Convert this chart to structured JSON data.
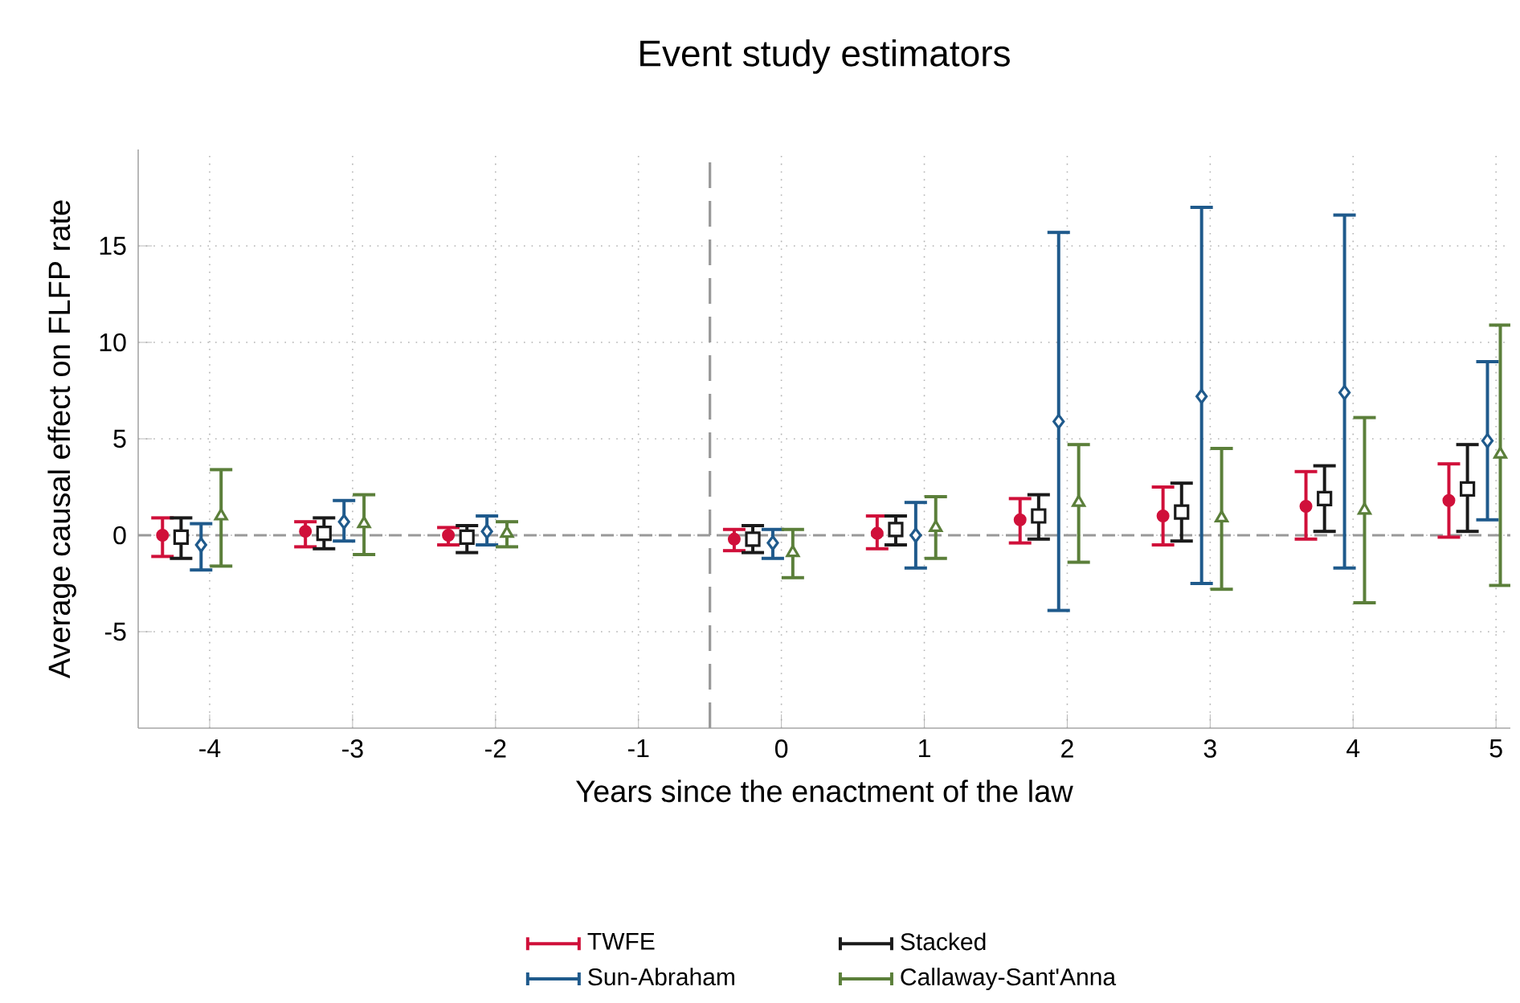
{
  "chart_data": {
    "type": "scatter",
    "title": "Event study estimators",
    "xlabel": "Years since the enactment of the law",
    "ylabel": "Average causal effect on FLFP rate",
    "xlim": [
      -4.5,
      5.1
    ],
    "xticks": [
      -4,
      -3,
      -2,
      -1,
      0,
      1,
      2,
      3,
      4,
      5
    ],
    "ylim": [
      -10,
      20
    ],
    "yticks": [
      -5,
      0,
      5,
      10,
      15
    ],
    "grid": true,
    "legend": "bottom",
    "ref_lines": [
      {
        "axis": "y",
        "value": 0,
        "color": "#999999",
        "line_style": "dashed"
      },
      {
        "axis": "x",
        "value": -0.5,
        "color": "#999999",
        "line_style": "dashed"
      }
    ],
    "series": [
      {
        "name": "TWFE",
        "color": "#d0103a",
        "marker": "circle",
        "x": [
          -4.33,
          -3.33,
          -2.33,
          -0.33,
          0.67,
          1.67,
          2.67,
          3.67,
          4.67
        ],
        "values": [
          0,
          0.2,
          0,
          -0.2,
          0.1,
          0.8,
          1.0,
          1.5,
          1.8
        ],
        "errors": [
          [
            -1.1,
            0.9
          ],
          [
            -0.6,
            0.7
          ],
          [
            -0.5,
            0.4
          ],
          [
            -0.8,
            0.3
          ],
          [
            -0.7,
            1.0
          ],
          [
            -0.4,
            1.9
          ],
          [
            -0.5,
            2.5
          ],
          [
            -0.2,
            3.3
          ],
          [
            -0.1,
            3.7
          ]
        ]
      },
      {
        "name": "Stacked",
        "color": "#1a1a1a",
        "marker": "square",
        "x": [
          -4.2,
          -3.2,
          -2.2,
          -0.2,
          0.8,
          1.8,
          2.8,
          3.8,
          4.8
        ],
        "values": [
          -0.1,
          0.1,
          -0.1,
          -0.2,
          0.3,
          1.0,
          1.2,
          1.9,
          2.4
        ],
        "errors": [
          [
            -1.2,
            0.9
          ],
          [
            -0.7,
            0.9
          ],
          [
            -0.9,
            0.5
          ],
          [
            -0.9,
            0.5
          ],
          [
            -0.5,
            1.0
          ],
          [
            -0.2,
            2.1
          ],
          [
            -0.3,
            2.7
          ],
          [
            0.2,
            3.6
          ],
          [
            0.2,
            4.7
          ]
        ]
      },
      {
        "name": "Sun-Abraham",
        "color": "#1f5a8c",
        "marker": "diamond",
        "x": [
          -4.06,
          -3.06,
          -2.06,
          -0.06,
          0.94,
          1.94,
          2.94,
          3.94,
          4.94
        ],
        "values": [
          -0.5,
          0.7,
          0.2,
          -0.4,
          0.0,
          5.9,
          7.2,
          7.4,
          4.9
        ],
        "errors": [
          [
            -1.8,
            0.6
          ],
          [
            -0.3,
            1.8
          ],
          [
            -0.5,
            1.0
          ],
          [
            -1.2,
            0.3
          ],
          [
            -1.7,
            1.7
          ],
          [
            -3.9,
            15.7
          ],
          [
            -2.5,
            17.0
          ],
          [
            -1.7,
            16.6
          ],
          [
            0.8,
            9.0
          ]
        ]
      },
      {
        "name": "Callaway-Sant'Anna",
        "color": "#5b7f3a",
        "marker": "triangle",
        "x": [
          -3.92,
          -2.92,
          -1.92,
          0.08,
          1.08,
          2.08,
          3.08,
          4.08,
          5.03
        ],
        "values": [
          1.0,
          0.6,
          0.1,
          -0.9,
          0.4,
          1.7,
          0.9,
          1.3,
          4.2
        ],
        "errors": [
          [
            -1.6,
            3.4
          ],
          [
            -1.0,
            2.1
          ],
          [
            -0.6,
            0.7
          ],
          [
            -2.2,
            0.3
          ],
          [
            -1.2,
            2.0
          ],
          [
            -1.4,
            4.7
          ],
          [
            -2.8,
            4.5
          ],
          [
            -3.5,
            6.1
          ],
          [
            -2.6,
            10.9
          ]
        ]
      }
    ]
  }
}
